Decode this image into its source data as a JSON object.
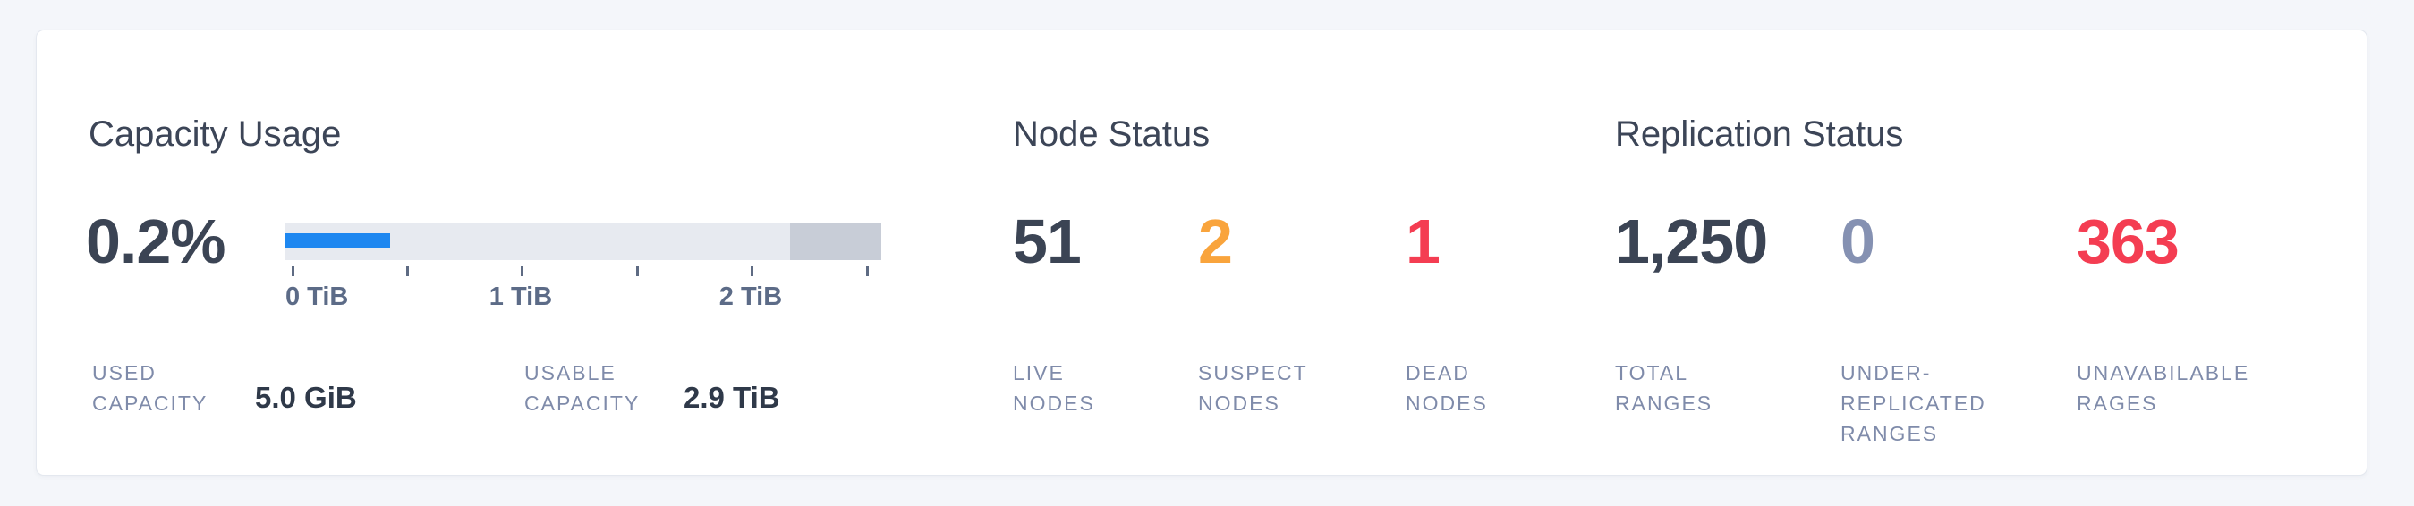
{
  "page": {
    "background_color": "#f4f6fa"
  },
  "card": {
    "background_color": "#ffffff",
    "border_color": "#e4e8ef"
  },
  "capacity": {
    "title": "Capacity Usage",
    "percent": {
      "value": "0.2%",
      "color": "#3b4454"
    },
    "bar": {
      "used_color": "#1e87f0",
      "track_color": "#e7eaf0",
      "reserved_color": "#c8cdd7",
      "axis_tick_labels": [
        "0 TiB",
        "1 TiB",
        "2 TiB"
      ]
    },
    "stats": [
      {
        "label": "USED\nCAPACITY",
        "value": "5.0 GiB"
      },
      {
        "label": "USABLE\nCAPACITY",
        "value": "2.9 TiB"
      }
    ]
  },
  "node_status": {
    "title": "Node Status",
    "metrics": [
      {
        "value": "51",
        "label": "LIVE\nNODES",
        "color": "#3b4454"
      },
      {
        "value": "2",
        "label": "SUSPECT\nNODES",
        "color": "#f9a43c"
      },
      {
        "value": "1",
        "label": "DEAD\nNODES",
        "color": "#f43d52"
      }
    ]
  },
  "replication_status": {
    "title": "Replication Status",
    "metrics": [
      {
        "value": "1,250",
        "label": "TOTAL\nRANGES",
        "color": "#3b4454"
      },
      {
        "value": "0",
        "label": "UNDER-\nREPLICATED\nRANGES",
        "color": "#8591b2"
      },
      {
        "value": "363",
        "label": "UNAVABILABLE\nRAGES",
        "color": "#f43d52"
      }
    ]
  }
}
